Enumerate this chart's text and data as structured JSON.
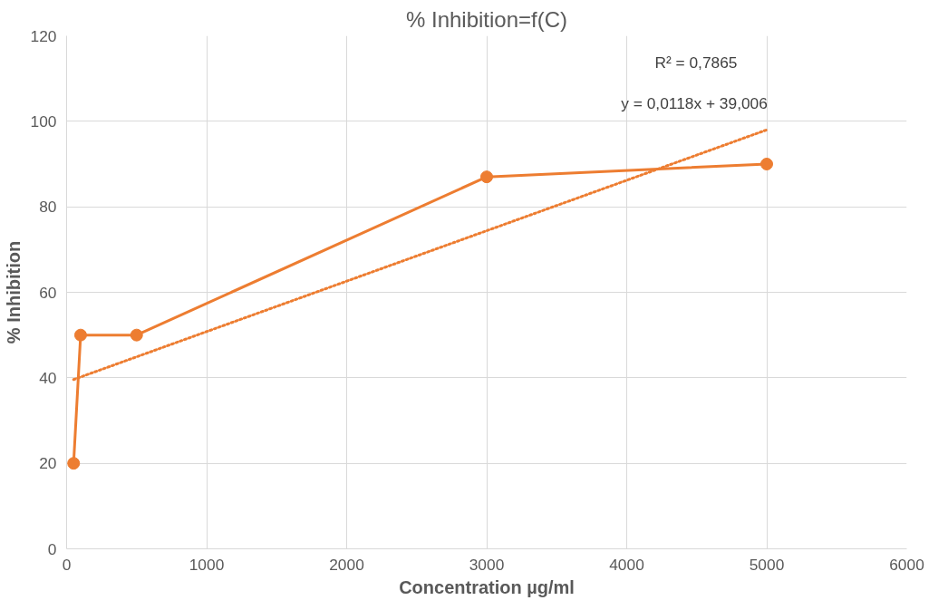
{
  "chart_data": {
    "type": "line",
    "title": "% Inhibition=f(C)",
    "xlabel": "Concentration µg/ml",
    "ylabel": "% Inhibition",
    "x": [
      50,
      100,
      500,
      3000,
      5000
    ],
    "series": [
      {
        "color": "#ed7d31",
        "values": [
          20,
          50,
          50,
          87,
          90
        ],
        "marker": "circle",
        "line_style": "solid"
      },
      {
        "type": "line",
        "x": [
          50,
          5000
        ],
        "values": [
          39.6,
          98
        ],
        "color": "#ed7d31",
        "marker": "none",
        "line_style": "dotted"
      }
    ],
    "annotations": [
      "R² = 0,7865",
      "y = 0,0118x + 39,006"
    ],
    "xlim": [
      0,
      6000
    ],
    "xticks": [
      0,
      1000,
      2000,
      3000,
      4000,
      5000,
      6000
    ],
    "ylim": [
      0,
      120
    ],
    "yticks": [
      0,
      20,
      40,
      60,
      80,
      100,
      120
    ],
    "grid": true
  }
}
